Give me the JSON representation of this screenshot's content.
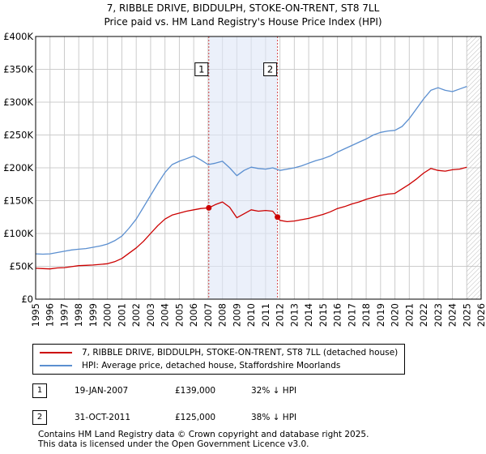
{
  "chart_data": {
    "type": "line",
    "title": "7, RIBBLE DRIVE, BIDDULPH, STOKE-ON-TRENT, ST8 7LL",
    "subtitle": "Price paid vs. HM Land Registry's House Price Index (HPI)",
    "xlabel": "",
    "ylabel": "",
    "xlim": [
      1995.0,
      2026.0
    ],
    "ylim": [
      0,
      400000
    ],
    "grid": true,
    "y_ticks": [
      {
        "value": 0,
        "label": "£0"
      },
      {
        "value": 50000,
        "label": "£50K"
      },
      {
        "value": 100000,
        "label": "£100K"
      },
      {
        "value": 150000,
        "label": "£150K"
      },
      {
        "value": 200000,
        "label": "£200K"
      },
      {
        "value": 250000,
        "label": "£250K"
      },
      {
        "value": 300000,
        "label": "£300K"
      },
      {
        "value": 350000,
        "label": "£350K"
      },
      {
        "value": 400000,
        "label": "£400K"
      }
    ],
    "x_ticks": [
      "1995",
      "1996",
      "1997",
      "1998",
      "1999",
      "2000",
      "2001",
      "2002",
      "2003",
      "2004",
      "2005",
      "2006",
      "2007",
      "2008",
      "2009",
      "2010",
      "2011",
      "2012",
      "2013",
      "2014",
      "2015",
      "2016",
      "2017",
      "2018",
      "2019",
      "2020",
      "2021",
      "2022",
      "2023",
      "2024",
      "2025",
      "2026"
    ],
    "shaded_region": {
      "from": 2007.05,
      "to": 2011.83,
      "color": "#dde6f7"
    },
    "forecast_hatch_from": 2025.0,
    "series": [
      {
        "name": "7, RIBBLE DRIVE, BIDDULPH, STOKE-ON-TRENT, ST8 7LL (detached house)",
        "color": "#cc0000",
        "x": [
          1995.0,
          1995.5,
          1996.0,
          1996.5,
          1997.0,
          1997.5,
          1998.0,
          1998.5,
          1999.0,
          1999.5,
          2000.0,
          2000.5,
          2001.0,
          2001.5,
          2002.0,
          2002.5,
          2003.0,
          2003.5,
          2004.0,
          2004.5,
          2005.0,
          2005.5,
          2006.0,
          2006.5,
          2007.05,
          2007.5,
          2008.0,
          2008.5,
          2009.0,
          2009.5,
          2010.0,
          2010.5,
          2011.0,
          2011.5,
          2011.83,
          2012.0,
          2012.5,
          2013.0,
          2013.5,
          2014.0,
          2014.5,
          2015.0,
          2015.5,
          2016.0,
          2016.5,
          2017.0,
          2017.5,
          2018.0,
          2018.5,
          2019.0,
          2019.5,
          2020.0,
          2020.5,
          2021.0,
          2021.5,
          2022.0,
          2022.5,
          2023.0,
          2023.5,
          2024.0,
          2024.5,
          2025.0
        ],
        "values": [
          47000,
          46500,
          46000,
          47500,
          48000,
          49500,
          51000,
          51500,
          52000,
          53000,
          54000,
          57000,
          62000,
          70000,
          78000,
          88000,
          100000,
          112000,
          122000,
          128000,
          131000,
          134000,
          136000,
          138000,
          139000,
          144000,
          148000,
          140000,
          124000,
          130000,
          136000,
          134000,
          135000,
          134000,
          125000,
          120000,
          118000,
          119000,
          121000,
          123000,
          126000,
          129000,
          133000,
          138000,
          141000,
          145000,
          148000,
          152000,
          155000,
          158000,
          160000,
          161000,
          168000,
          175000,
          183000,
          192000,
          199000,
          196000,
          195000,
          197000,
          198000,
          201000
        ]
      },
      {
        "name": "HPI: Average price, detached house, Staffordshire Moorlands",
        "color": "#5b8fd0",
        "x": [
          1995.0,
          1995.5,
          1996.0,
          1996.5,
          1997.0,
          1997.5,
          1998.0,
          1998.5,
          1999.0,
          1999.5,
          2000.0,
          2000.5,
          2001.0,
          2001.5,
          2002.0,
          2002.5,
          2003.0,
          2003.5,
          2004.0,
          2004.5,
          2005.0,
          2005.5,
          2006.0,
          2006.5,
          2007.0,
          2007.5,
          2008.0,
          2008.5,
          2009.0,
          2009.5,
          2010.0,
          2010.5,
          2011.0,
          2011.5,
          2012.0,
          2012.5,
          2013.0,
          2013.5,
          2014.0,
          2014.5,
          2015.0,
          2015.5,
          2016.0,
          2016.5,
          2017.0,
          2017.5,
          2018.0,
          2018.5,
          2019.0,
          2019.5,
          2020.0,
          2020.5,
          2021.0,
          2021.5,
          2022.0,
          2022.5,
          2023.0,
          2023.5,
          2024.0,
          2024.5,
          2025.0
        ],
        "values": [
          69000,
          68500,
          69000,
          71000,
          73000,
          75000,
          76000,
          77000,
          79000,
          81000,
          84000,
          89000,
          96000,
          108000,
          122000,
          140000,
          158000,
          176000,
          193000,
          205000,
          210000,
          214000,
          218000,
          212000,
          205000,
          207000,
          210000,
          200000,
          188000,
          196000,
          201000,
          199000,
          198000,
          200000,
          196000,
          198000,
          200000,
          203000,
          207000,
          211000,
          214000,
          218000,
          224000,
          229000,
          234000,
          239000,
          244000,
          250000,
          254000,
          256000,
          257000,
          263000,
          275000,
          290000,
          305000,
          318000,
          322000,
          318000,
          316000,
          320000,
          324000
        ]
      }
    ],
    "annotations": [
      {
        "label": "1",
        "x": 2007.05,
        "y": 139000
      },
      {
        "label": "2",
        "x": 2011.83,
        "y": 125000
      }
    ]
  },
  "legend": {
    "items": [
      {
        "label": "7, RIBBLE DRIVE, BIDDULPH, STOKE-ON-TRENT, ST8 7LL (detached house)",
        "color": "#cc0000"
      },
      {
        "label": "HPI: Average price, detached house, Staffordshire Moorlands",
        "color": "#5b8fd0"
      }
    ]
  },
  "sales": [
    {
      "num": "1",
      "date": "19-JAN-2007",
      "price": "£139,000",
      "hpi": "32% ↓ HPI"
    },
    {
      "num": "2",
      "date": "31-OCT-2011",
      "price": "£125,000",
      "hpi": "38% ↓ HPI"
    }
  ],
  "footer": {
    "line1": "Contains HM Land Registry data © Crown copyright and database right 2025.",
    "line2": "This data is licensed under the Open Government Licence v3.0."
  }
}
